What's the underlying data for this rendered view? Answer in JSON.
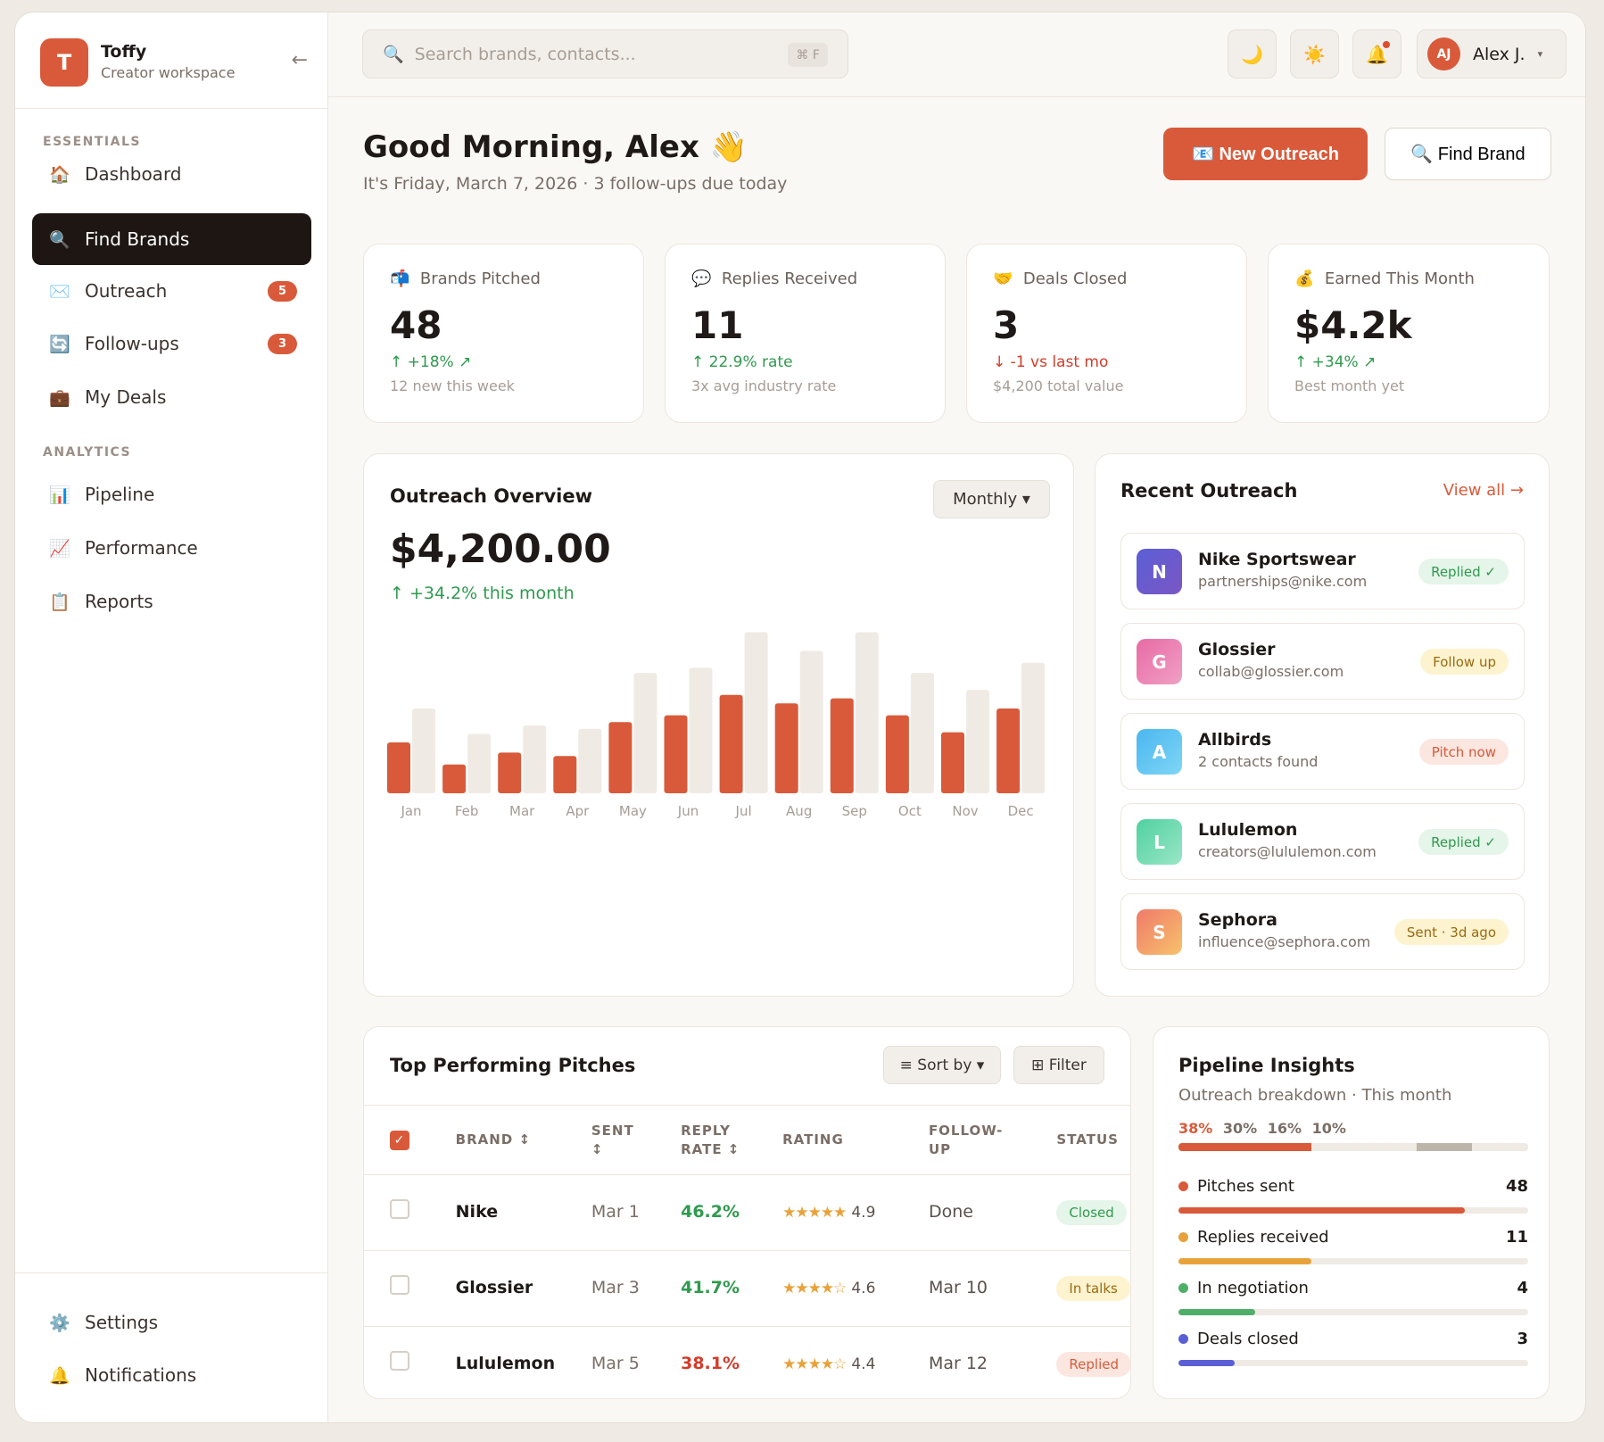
{
  "app": {
    "name": "Toffy",
    "subtitle": "Creator workspace",
    "logo_letter": "T",
    "collapse_icon": "←"
  },
  "sidebar": {
    "sections": {
      "essentials": "ESSENTIALS",
      "analytics": "ANALYTICS"
    },
    "items": [
      {
        "label": "Dashboard",
        "icon": "🏠"
      },
      {
        "label": "Find Brands",
        "icon": "🔍",
        "active": true
      },
      {
        "label": "Outreach",
        "icon": "✉️",
        "badge": "5"
      },
      {
        "label": "Follow-ups",
        "icon": "🔄",
        "badge": "3"
      },
      {
        "label": "My Deals",
        "icon": "💼"
      },
      {
        "label": "Pipeline",
        "icon": "📊"
      },
      {
        "label": "Performance",
        "icon": "📈"
      },
      {
        "label": "Reports",
        "icon": "📋"
      }
    ],
    "bottom": [
      {
        "label": "Settings",
        "icon": "⚙️"
      },
      {
        "label": "Notifications",
        "icon": "🔔"
      }
    ]
  },
  "topbar": {
    "search_placeholder": "Search brands, contacts...",
    "shortcut": "⌘ F",
    "icons": {
      "moon": "🌙",
      "sun": "☀️",
      "bell": "🔔"
    },
    "user": {
      "initials": "AJ",
      "name": "Alex J.",
      "caret": "▾"
    }
  },
  "header": {
    "greeting": "Good Morning, Alex 👋",
    "subtitle": "It's Friday, March 7, 2026 · 3 follow-ups due today",
    "primary_button": "📧 New Outreach",
    "secondary_button": "🔍 Find Brand"
  },
  "stats": [
    {
      "icon": "📬",
      "label": "Brands Pitched",
      "value": "48",
      "delta": "↑ +18% ↗",
      "delta_tone": "green",
      "note": "12 new this week"
    },
    {
      "icon": "💬",
      "label": "Replies Received",
      "value": "11",
      "delta": "↑ 22.9% rate",
      "delta_tone": "green",
      "note": "3x avg industry rate"
    },
    {
      "icon": "🤝",
      "label": "Deals Closed",
      "value": "3",
      "delta": "↓ -1 vs last mo",
      "delta_tone": "red",
      "note": "$4,200 total value"
    },
    {
      "icon": "💰",
      "label": "Earned This Month",
      "value": "$4.2k",
      "delta": "↑ +34% ↗",
      "delta_tone": "green",
      "note": "Best month yet"
    }
  ],
  "overview": {
    "title": "Outreach Overview",
    "period": "Monthly ▾",
    "amount": "$4,200.00",
    "delta": "↑ +34.2% this month"
  },
  "chart_data": {
    "type": "bar",
    "categories": [
      "Jan",
      "Feb",
      "Mar",
      "Apr",
      "May",
      "Jun",
      "Jul",
      "Aug",
      "Sep",
      "Oct",
      "Nov",
      "Dec"
    ],
    "series": [
      {
        "values": [
          30,
          17,
          24,
          22,
          42,
          46,
          58,
          53,
          56,
          46,
          36,
          50
        ],
        "color": "#d95a3a"
      },
      {
        "values": [
          50,
          35,
          40,
          38,
          71,
          74,
          95,
          84,
          95,
          71,
          61,
          77
        ],
        "color": "#efebe4"
      }
    ],
    "ylim": [
      0,
      100
    ],
    "grid": false
  },
  "recent": {
    "title": "Recent Outreach",
    "view_all": "View all →",
    "rows": [
      {
        "letter": "N",
        "name": "Nike Sportswear",
        "sub": "partnerships@nike.com",
        "status": "Replied ✓",
        "tone": "green",
        "grad": "linear-gradient(135deg,#5b5fd6,#7b56c4)"
      },
      {
        "letter": "G",
        "name": "Glossier",
        "sub": "collab@glossier.com",
        "status": "Follow up",
        "tone": "yellow",
        "grad": "linear-gradient(135deg,#e86aa5,#f0a0c4)"
      },
      {
        "letter": "A",
        "name": "Allbirds",
        "sub": "2 contacts found",
        "status": "Pitch now",
        "tone": "pink",
        "grad": "linear-gradient(135deg,#4bb6f0,#7fd6f5)"
      },
      {
        "letter": "L",
        "name": "Lululemon",
        "sub": "creators@lululemon.com",
        "status": "Replied ✓",
        "tone": "green",
        "grad": "linear-gradient(135deg,#4fd1a0,#9ae6c6)"
      },
      {
        "letter": "S",
        "name": "Sephora",
        "sub": "influence@sephora.com",
        "status": "Sent · 3d ago",
        "tone": "yellow",
        "grad": "linear-gradient(135deg,#f07a6a,#f7c26b)"
      }
    ]
  },
  "pitches": {
    "title": "Top Performing Pitches",
    "sort_label": "≡ Sort by ▾",
    "filter_label": "⊞ Filter",
    "headers": {
      "brand": "BRAND ↕",
      "sent": "SENT ↕",
      "reply": "REPLY RATE ↕",
      "rating": "RATING",
      "followup": "FOLLOW-UP",
      "status": "STATUS"
    },
    "rows": [
      {
        "brand": "Nike",
        "sent": "Mar 1",
        "reply": "46.2%",
        "reply_tone": "green",
        "stars": "★★★★★",
        "rating": "4.9",
        "followup": "Done",
        "status": "Closed",
        "status_tone": "green"
      },
      {
        "brand": "Glossier",
        "sent": "Mar 3",
        "reply": "41.7%",
        "reply_tone": "green",
        "stars": "★★★★☆",
        "rating": "4.6",
        "followup": "Mar 10",
        "status": "In talks",
        "status_tone": "yellow"
      },
      {
        "brand": "Lululemon",
        "sent": "Mar 5",
        "reply": "38.1%",
        "reply_tone": "red",
        "stars": "★★★★☆",
        "rating": "4.4",
        "followup": "Mar 12",
        "status": "Replied",
        "status_tone": "pink"
      }
    ]
  },
  "insights": {
    "title": "Pipeline Insights",
    "subtitle": "Outreach breakdown · This month",
    "percents": [
      "38%",
      "30%",
      "16%",
      "10%"
    ],
    "rows": [
      {
        "label": "Pitches sent",
        "value": "48",
        "fill": 0.82,
        "color": "#d95a3a"
      },
      {
        "label": "Replies received",
        "value": "11",
        "fill": 0.38,
        "color": "#e8a23a"
      },
      {
        "label": "In negotiation",
        "value": "4",
        "fill": 0.22,
        "color": "#4fae6a"
      },
      {
        "label": "Deals closed",
        "value": "3",
        "fill": 0.16,
        "color": "#5b5fd6"
      }
    ]
  }
}
